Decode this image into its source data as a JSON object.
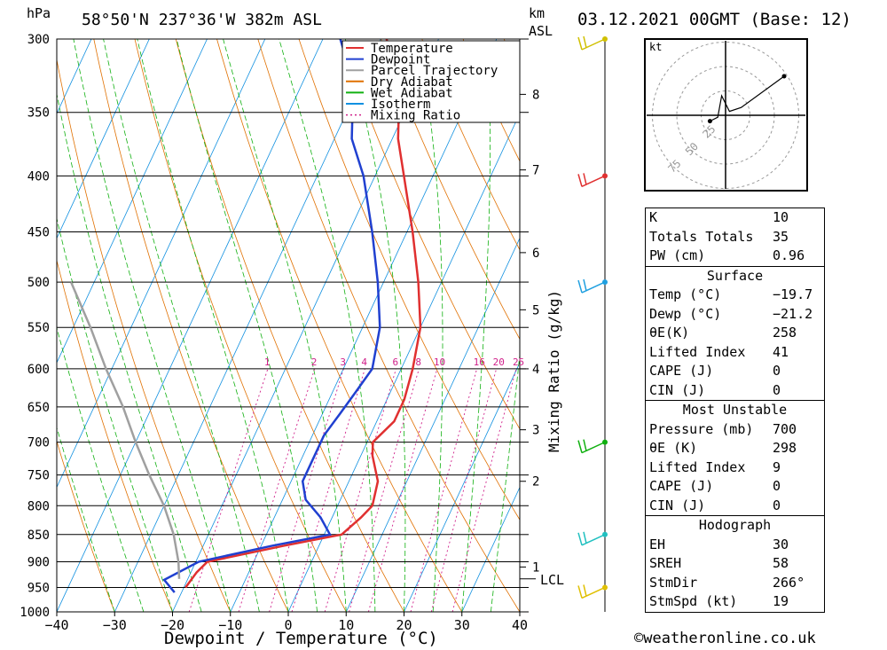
{
  "header": {
    "pressure_unit": "hPa",
    "location": "58°50'N  237°36'W  382m  ASL",
    "km_label": "km",
    "asl_label": "ASL",
    "datetime": "03.12.2021  00GMT  (Base: 12)"
  },
  "legend": [
    {
      "label": "Temperature",
      "color": "#e03030"
    },
    {
      "label": "Dewpoint",
      "color": "#2040d0"
    },
    {
      "label": "Parcel Trajectory",
      "color": "#a0a0a0"
    },
    {
      "label": "Dry Adiabat",
      "color": "#e07000"
    },
    {
      "label": "Wet Adiabat",
      "color": "#10b010"
    },
    {
      "label": "Isotherm",
      "color": "#1090e0"
    },
    {
      "label": "Mixing Ratio",
      "color": "#d0208a"
    }
  ],
  "chart_data": {
    "type": "line",
    "title": "58°50'N  237°36'W  382m  ASL",
    "xlabel": "Dewpoint / Temperature (°C)",
    "ylabel": "hPa",
    "xlim": [
      -40,
      40
    ],
    "ylim": [
      1000,
      300
    ],
    "y_log_scale": true,
    "x_ticks": [
      "−40",
      "−30",
      "−20",
      "−10",
      "0",
      "10",
      "20",
      "30",
      "40"
    ],
    "pressure_levels": [
      300,
      350,
      400,
      450,
      500,
      550,
      600,
      650,
      700,
      750,
      800,
      850,
      900,
      950,
      1000
    ],
    "height_km_ticks": [
      {
        "p": 910,
        "label": "1"
      },
      {
        "p": 760,
        "label": "2"
      },
      {
        "p": 682,
        "label": "3"
      },
      {
        "p": 600,
        "label": "4"
      },
      {
        "p": 530,
        "label": "5"
      },
      {
        "p": 470,
        "label": "6"
      },
      {
        "p": 395,
        "label": "7"
      },
      {
        "p": 337,
        "label": "8"
      }
    ],
    "lcl_label": "LCL",
    "lcl_pressure": 933,
    "mixing_ratio_axis_label": "Mixing Ratio (g/kg)",
    "mixing_ratio_labels": [
      "1",
      "2",
      "3",
      "4",
      "6",
      "8",
      "10",
      "16",
      "20",
      "25"
    ],
    "series": [
      {
        "name": "Temperature",
        "color": "#e03030",
        "points": [
          [
            950,
            -19.7
          ],
          [
            920,
            -19
          ],
          [
            900,
            -18
          ],
          [
            870,
            -6
          ],
          [
            850,
            3
          ],
          [
            820,
            5
          ],
          [
            800,
            6
          ],
          [
            760,
            5
          ],
          [
            720,
            2
          ],
          [
            700,
            1
          ],
          [
            670,
            3
          ],
          [
            640,
            3
          ],
          [
            600,
            2
          ],
          [
            550,
            0
          ],
          [
            500,
            -4
          ],
          [
            450,
            -9
          ],
          [
            400,
            -15
          ],
          [
            370,
            -19
          ],
          [
            350,
            -21
          ],
          [
            320,
            -25
          ],
          [
            300,
            -29
          ]
        ]
      },
      {
        "name": "Dewpoint",
        "color": "#2040d0",
        "points": [
          [
            960,
            -21.2
          ],
          [
            935,
            -24
          ],
          [
            900,
            -19.5
          ],
          [
            870,
            -8
          ],
          [
            850,
            1
          ],
          [
            820,
            -2
          ],
          [
            790,
            -6
          ],
          [
            760,
            -8
          ],
          [
            720,
            -8
          ],
          [
            690,
            -8
          ],
          [
            660,
            -7
          ],
          [
            630,
            -6
          ],
          [
            600,
            -5
          ],
          [
            550,
            -7
          ],
          [
            500,
            -11
          ],
          [
            450,
            -16
          ],
          [
            400,
            -22
          ],
          [
            370,
            -27
          ],
          [
            350,
            -29
          ],
          [
            330,
            -31
          ],
          [
            300,
            -37
          ]
        ]
      },
      {
        "name": "Parcel Trajectory",
        "color": "#a0a0a0",
        "points": [
          [
            933,
            -21.5
          ],
          [
            900,
            -23
          ],
          [
            850,
            -26
          ],
          [
            800,
            -30
          ],
          [
            750,
            -35
          ],
          [
            700,
            -40
          ],
          [
            650,
            -45
          ],
          [
            600,
            -51
          ],
          [
            550,
            -57
          ],
          [
            500,
            -64
          ]
        ]
      }
    ]
  },
  "hodograph": {
    "unit": "kt",
    "ring_labels": [
      "25",
      "50",
      "75"
    ],
    "trace": [
      [
        -8,
        -3
      ],
      [
        -4,
        -1
      ],
      [
        -2,
        10
      ],
      [
        2,
        2
      ],
      [
        8,
        4
      ],
      [
        30,
        20
      ]
    ]
  },
  "wind_barbs": [
    {
      "p": 300,
      "color": "#d0c000"
    },
    {
      "p": 400,
      "color": "#e03030"
    },
    {
      "p": 500,
      "color": "#20a0e0"
    },
    {
      "p": 700,
      "color": "#10b010"
    },
    {
      "p": 850,
      "color": "#20c0c0"
    },
    {
      "p": 950,
      "color": "#e0c000"
    }
  ],
  "indices": {
    "k_label": "K",
    "k": "10",
    "tt_label": "Totals Totals",
    "tt": "35",
    "pw_label": "PW (cm)",
    "pw": "0.96"
  },
  "surface": {
    "title": "Surface",
    "temp_label": "Temp (°C)",
    "temp": "−19.7",
    "dewp_label": "Dewp (°C)",
    "dewp": "−21.2",
    "theta_label": "θE(K)",
    "theta": "258",
    "li_label": "Lifted Index",
    "li": "41",
    "cape_label": "CAPE (J)",
    "cape": "0",
    "cin_label": "CIN (J)",
    "cin": "0"
  },
  "most_unstable": {
    "title": "Most Unstable",
    "pressure_label": "Pressure (mb)",
    "pressure": "700",
    "theta_label": "θE (K)",
    "theta": "298",
    "li_label": "Lifted Index",
    "li": "9",
    "cape_label": "CAPE (J)",
    "cape": "0",
    "cin_label": "CIN (J)",
    "cin": "0"
  },
  "hodo_table": {
    "title": "Hodograph",
    "eh_label": "EH",
    "eh": "30",
    "sreh_label": "SREH",
    "sreh": "58",
    "stmdir_label": "StmDir",
    "stmdir": "266°",
    "stmspd_label": "StmSpd (kt)",
    "stmspd": "19"
  },
  "credit": "©weatheronline.co.uk"
}
